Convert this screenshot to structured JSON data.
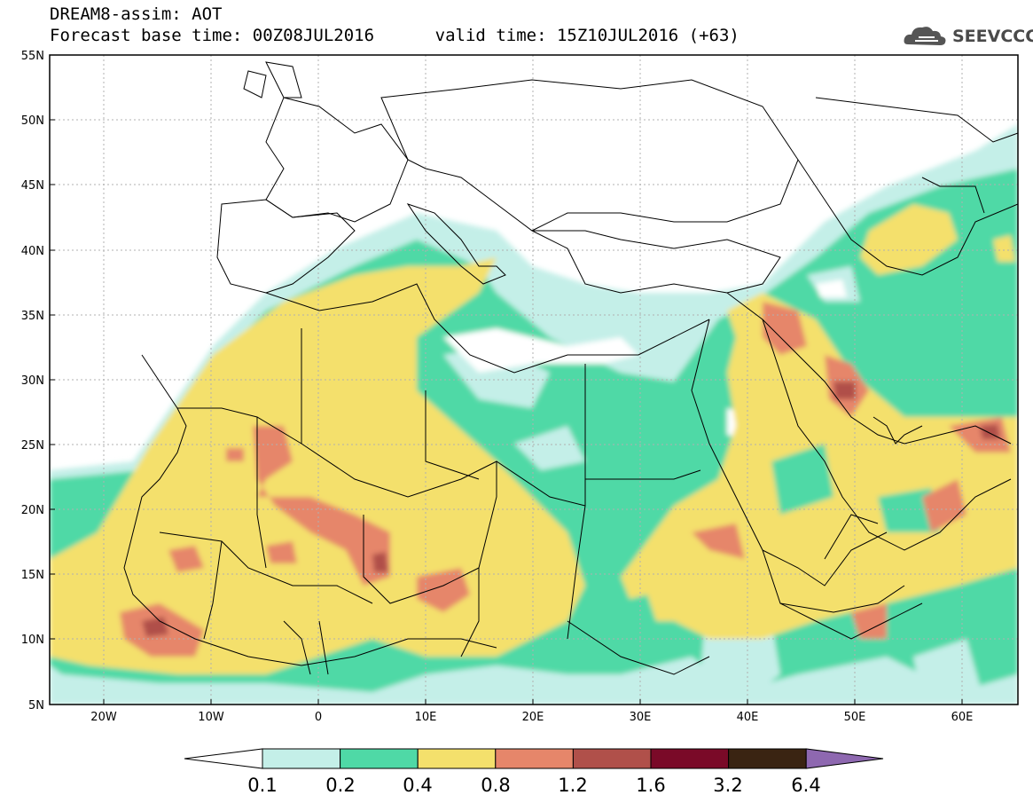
{
  "header": {
    "title": "DREAM8-assim: AOT",
    "forecast_line": "Forecast base time: 00Z08JUL2016      valid time: 15Z10JUL2016 (+63)"
  },
  "logo": {
    "text": "SEEVCCC",
    "icon": "cloud-icon"
  },
  "map": {
    "lat_labels": [
      "55N",
      "50N",
      "45N",
      "40N",
      "35N",
      "30N",
      "25N",
      "20N",
      "15N",
      "10N",
      "5N"
    ],
    "lon_labels": [
      "20W",
      "10W",
      "0",
      "10E",
      "20E",
      "30E",
      "40E",
      "50E",
      "60E"
    ],
    "field": "AOT",
    "colors": {
      "0.1-0.2": "#c4efe8",
      "0.2-0.4": "#4fd9a6",
      "0.4-0.8": "#f4e06c",
      "0.8-1.2": "#e6866a",
      "1.2-1.6": "#b0504a",
      "1.6-3.2": "#7a0a28",
      "3.2-6.4": "#3a2412",
      "over-6.4": "#8e68b0",
      "under-0.1": "#ffffff",
      "border": "#000000",
      "grid": "#bfbfbf"
    }
  },
  "colorbar": {
    "ticks": [
      "0.1",
      "0.2",
      "0.4",
      "0.8",
      "1.2",
      "1.6",
      "3.2",
      "6.4"
    ],
    "colors": [
      "#ffffff",
      "#c4efe8",
      "#4fd9a6",
      "#f4e06c",
      "#e6866a",
      "#b0504a",
      "#7a0a28",
      "#3a2412",
      "#8e68b0"
    ]
  }
}
